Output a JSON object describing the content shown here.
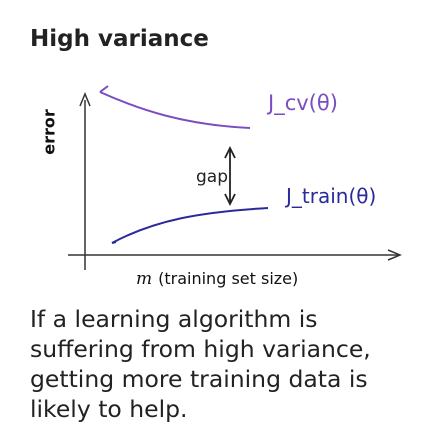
{
  "title": "High variance",
  "axes": {
    "y_label": "error",
    "x_var": "m",
    "x_desc": "(training set size)"
  },
  "curves": {
    "cv_label": "J_cv(θ)",
    "train_label": "J_train(θ)",
    "gap_label": "gap"
  },
  "body": "If a learning algorithm is suffering from high variance, getting more training data is likely to help.",
  "colors": {
    "cv": "#7a4ec0",
    "train": "#2a2a9a",
    "axis": "#333333",
    "text": "#222222"
  }
}
